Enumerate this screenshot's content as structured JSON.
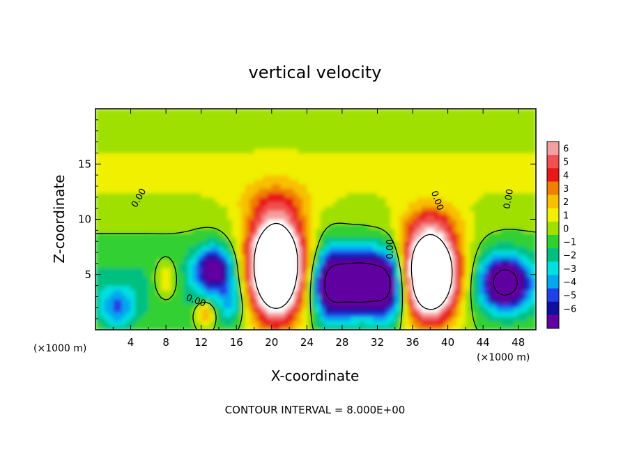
{
  "chart_data": {
    "type": "heatmap",
    "title": "vertical velocity",
    "xlabel": "X-coordinate",
    "ylabel": "Z-coordinate",
    "x_unit": "(×1000 m)",
    "z_unit": "(×1000 m)",
    "xlim": [
      0,
      50
    ],
    "ylim": [
      0,
      20
    ],
    "x_ticks": [
      4,
      8,
      12,
      16,
      20,
      24,
      28,
      32,
      36,
      40,
      44,
      48
    ],
    "y_ticks": [
      5,
      10,
      15
    ],
    "colorbar": {
      "levels": [
        6,
        5,
        4,
        3,
        2,
        1,
        0,
        -1,
        -2,
        -3,
        -4,
        -5,
        -6
      ],
      "colors": [
        "#f4a0a0",
        "#f05050",
        "#e81818",
        "#f08000",
        "#f8c000",
        "#f0f000",
        "#a0e000",
        "#30d030",
        "#00c080",
        "#00e0e0",
        "#00a8f0",
        "#2040e8",
        "#1010a0",
        "#6000a0"
      ]
    },
    "contour_interval": "CONTOUR INTERVAL = 8.000E+00",
    "contour_labels": [
      "0.00",
      "0.00",
      "0.00",
      "0.00",
      "0.00"
    ],
    "features": [
      {
        "kind": "updraft",
        "x_center": 20.5,
        "z_center": 5.5,
        "x_halfwidth": 3.8,
        "z_halfwidth": 5.3,
        "peak": 16
      },
      {
        "kind": "updraft",
        "x_center": 38.0,
        "z_center": 5.0,
        "x_halfwidth": 3.8,
        "z_halfwidth": 4.7,
        "peak": 16
      },
      {
        "kind": "downdraft",
        "x_center": 30.0,
        "z_center": 4.3,
        "x_halfwidth": 4.3,
        "z_halfwidth": 3.0,
        "peak": -11
      },
      {
        "kind": "downdraft",
        "x_center": 46.5,
        "z_center": 4.3,
        "x_halfwidth": 3.0,
        "z_halfwidth": 2.6,
        "peak": -9
      },
      {
        "kind": "downdraft",
        "x_center": 13.5,
        "z_center": 5.5,
        "x_halfwidth": 2.5,
        "z_halfwidth": 2.3,
        "peak": -7
      },
      {
        "kind": "weak updraft",
        "x_center": 8.0,
        "z_center": 4.5,
        "x_halfwidth": 1.5,
        "z_halfwidth": 2.0,
        "peak": 3
      },
      {
        "kind": "weak updraft",
        "x_center": 12.5,
        "z_center": 1.5,
        "x_halfwidth": 1.2,
        "z_halfwidth": 1.2,
        "peak": 4
      }
    ]
  }
}
